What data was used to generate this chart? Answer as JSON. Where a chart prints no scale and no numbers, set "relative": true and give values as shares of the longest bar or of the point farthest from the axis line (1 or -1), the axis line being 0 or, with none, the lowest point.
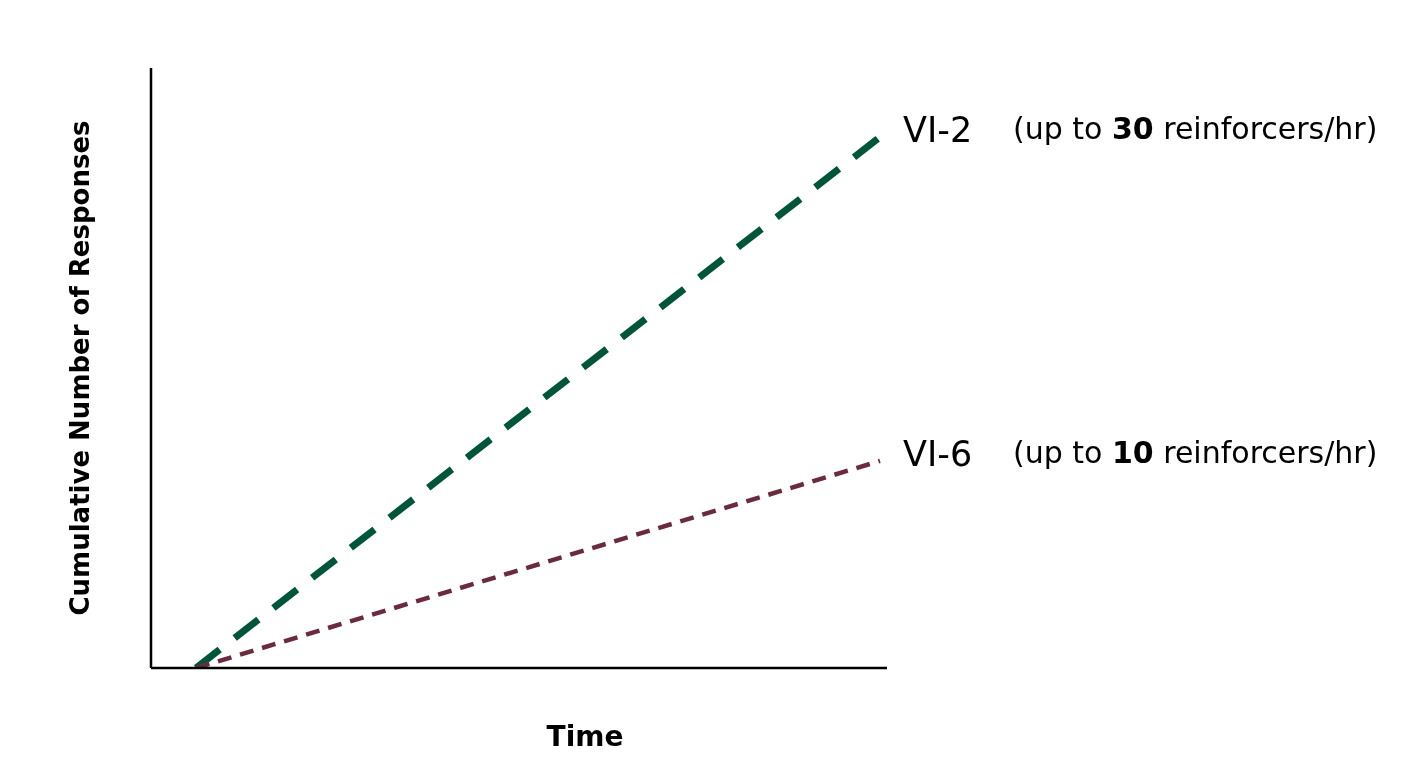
{
  "chart_data": {
    "type": "line",
    "xlabel": "Time",
    "ylabel": "Cumulative Number of Responses",
    "categories": [
      null,
      null
    ],
    "relative": true,
    "line_style": "dashed",
    "marker": "none",
    "series": [
      {
        "name": "VI-2",
        "color": "#00543a",
        "values": [
          0,
          1
        ]
      },
      {
        "name": "VI-6",
        "color": "#6a2c3d",
        "values": [
          0,
          0.39
        ]
      }
    ],
    "annotations": [
      "(up to 30 reinforcers/hr)",
      "(up to 10 reinforcers/hr)"
    ]
  }
}
